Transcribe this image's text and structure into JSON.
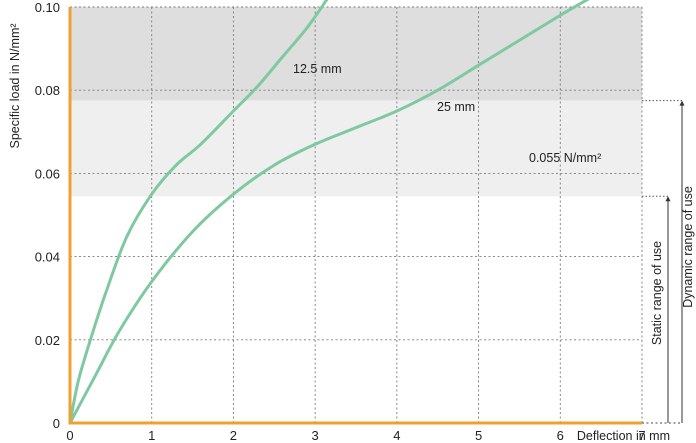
{
  "chart_data": {
    "type": "line",
    "xlabel": "Deflection in mm",
    "ylabel": "Specific load in N/mm²",
    "xlim": [
      0,
      7
    ],
    "ylim": [
      0,
      0.1
    ],
    "x_ticks": [
      "0",
      "1",
      "2",
      "3",
      "4",
      "5",
      "6",
      "7"
    ],
    "y_ticks": [
      "0",
      "0.02",
      "0.04",
      "0.06",
      "0.08",
      "0.10"
    ],
    "grid": true,
    "axis_color": "#f0a030",
    "series": [
      {
        "name": "12.5 mm",
        "color": "#7fc9a0",
        "x": [
          0,
          0.1,
          0.25,
          0.45,
          0.7,
          1.0,
          1.3,
          1.6,
          2.0,
          2.3,
          2.6,
          2.9,
          3.15
        ],
        "y": [
          0,
          0.01,
          0.02,
          0.032,
          0.045,
          0.055,
          0.062,
          0.067,
          0.075,
          0.081,
          0.088,
          0.095,
          0.102
        ]
      },
      {
        "name": "25 mm",
        "color": "#7fc9a0",
        "x": [
          0,
          0.3,
          0.6,
          1.0,
          1.5,
          2.0,
          2.5,
          3.0,
          3.5,
          4.0,
          4.5,
          5.0,
          5.5,
          6.0,
          6.35
        ],
        "y": [
          0,
          0.011,
          0.022,
          0.034,
          0.046,
          0.055,
          0.062,
          0.067,
          0.071,
          0.075,
          0.08,
          0.086,
          0.092,
          0.098,
          0.102
        ]
      }
    ],
    "bands": [
      {
        "from": 0.0775,
        "to": 0.1,
        "color": "#dedede"
      },
      {
        "from": 0.0545,
        "to": 0.0775,
        "color": "#efefef"
      }
    ],
    "annotations": {
      "curve_thin": "12.5 mm",
      "curve_thick": "25 mm",
      "static_limit": "0.055 N/mm²"
    },
    "ranges": {
      "static": "Static range of use",
      "dynamic": "Dynamic range of use"
    }
  }
}
